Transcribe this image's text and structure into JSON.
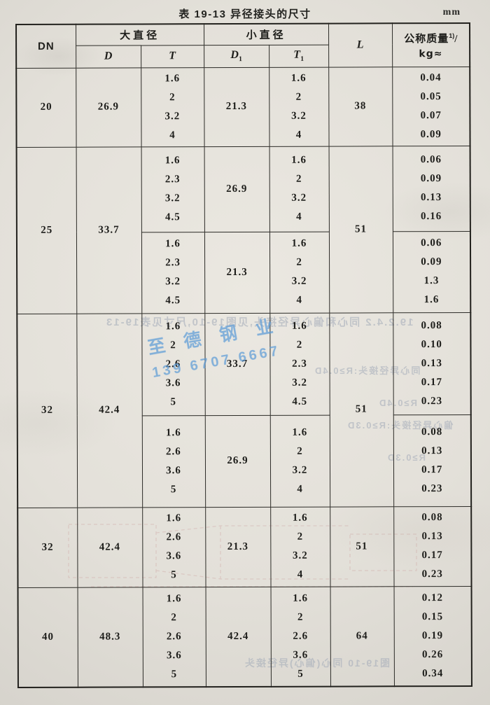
{
  "page": {
    "title": "表 19-13  异径接头的尺寸",
    "unit": "mm"
  },
  "table": {
    "headers": {
      "dn": "DN",
      "large_diameter": "大直径",
      "small_diameter": "小直径",
      "d": "D",
      "t": "T",
      "d1_base": "D",
      "d1_sub": "1",
      "t1_base": "T",
      "t1_sub": "1",
      "l": "L",
      "mass_title": "公称质量",
      "mass_sup": "1)",
      "mass_slash": "/",
      "mass_unit": "kg≈"
    },
    "blocks": [
      {
        "dn": "20",
        "d": "26.9",
        "l": "38",
        "subs": [
          {
            "t": [
              "1.6",
              "2",
              "3.2",
              "4"
            ],
            "d1": "21.3",
            "t1": [
              "1.6",
              "2",
              "3.2",
              "4"
            ],
            "kg": [
              "0.04",
              "0.05",
              "0.07",
              "0.09"
            ]
          }
        ]
      },
      {
        "dn": "25",
        "d": "33.7",
        "l": "51",
        "subs": [
          {
            "t": [
              "1.6",
              "2.3",
              "3.2",
              "4.5"
            ],
            "d1": "26.9",
            "t1": [
              "1.6",
              "2",
              "3.2",
              "4"
            ],
            "kg": [
              "0.06",
              "0.09",
              "0.13",
              "0.16"
            ]
          },
          {
            "t": [
              "1.6",
              "2.3",
              "3.2",
              "4.5"
            ],
            "d1": "21.3",
            "t1": [
              "1.6",
              "2",
              "3.2",
              "4"
            ],
            "kg": [
              "0.06",
              "0.09",
              "1.3",
              "1.6"
            ]
          }
        ]
      },
      {
        "dn": "32",
        "d": "42.4",
        "l": "51",
        "subs": [
          {
            "t": [
              "1.6",
              "2",
              "2.6",
              "3.6",
              "5"
            ],
            "d1": "33.7",
            "t1": [
              "1.6",
              "2",
              "2.3",
              "3.2",
              "4.5"
            ],
            "kg": [
              "0.08",
              "0.10",
              "0.13",
              "0.17",
              "0.23"
            ]
          },
          {
            "t": [
              "1.6",
              "2.6",
              "3.6",
              "5"
            ],
            "d1": "26.9",
            "t1": [
              "1.6",
              "2",
              "3.2",
              "4"
            ],
            "kg": [
              "0.08",
              "0.13",
              "0.17",
              "0.23"
            ]
          }
        ]
      },
      {
        "dn": "32",
        "d": "42.4",
        "l": "51",
        "subs": [
          {
            "t": [
              "1.6",
              "2.6",
              "3.6",
              "5"
            ],
            "d1": "21.3",
            "t1": [
              "1.6",
              "2",
              "3.2",
              "4"
            ],
            "kg": [
              "0.08",
              "0.13",
              "0.17",
              "0.23"
            ]
          }
        ]
      },
      {
        "dn": "40",
        "d": "48.3",
        "l": "64",
        "subs": [
          {
            "t": [
              "1.6",
              "2",
              "2.6",
              "3.6",
              "5"
            ],
            "d1": "42.4",
            "t1": [
              "1.6",
              "2",
              "2.6",
              "3.6",
              "5"
            ],
            "kg": [
              "0.12",
              "0.15",
              "0.19",
              "0.26",
              "0.34"
            ]
          }
        ]
      }
    ]
  },
  "stamp": {
    "name": "至德钢业",
    "phone": "139 6707 6667",
    "color": "#5d9cd7"
  },
  "bleedthrough": {
    "line_top": "19.2.4.2 同心和偏心异径接头,见图19-10,尺寸见表19-13",
    "line_r1": "同心异径接头:R≥0.4D",
    "line_r2": "R≥0.4D",
    "line_r3": "偏心异径接头:R≥0.3D",
    "line_r4": "R≥0.3D",
    "line_bottom": "图19-10 同心(偏心)异径接头"
  }
}
